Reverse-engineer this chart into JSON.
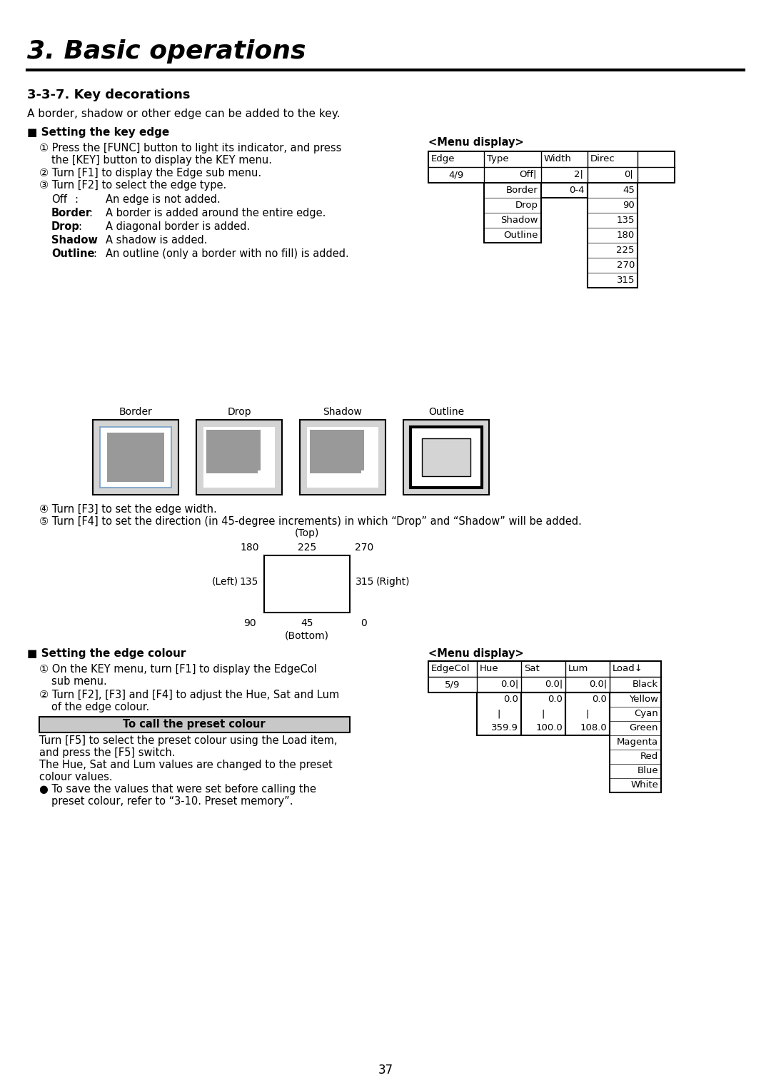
{
  "title": "3. Basic operations",
  "section_title": "3-3-7. Key decorations",
  "intro_text": "A border, shadow or other edge can be added to the key.",
  "setting_key_edge_title": "■ Setting the key edge",
  "menu_display_title1": "<Menu display>",
  "table1_header": [
    "Edge",
    "Type",
    "Width",
    "Direc",
    ""
  ],
  "table1_row1": [
    "4/9",
    "Off",
    "2",
    "0",
    ""
  ],
  "table1_dropdown_types": [
    "Border",
    "Drop",
    "Shadow",
    "Outline"
  ],
  "table1_dropdown_width": "0-4",
  "table1_dropdown_direc": [
    "45",
    "90",
    "135",
    "180",
    "225",
    "270",
    "315"
  ],
  "edge_images_labels": [
    "Border",
    "Drop",
    "Shadow",
    "Outline"
  ],
  "setting_edge_colour_title": "■ Setting the edge colour",
  "menu_display_title2": "<Menu display>",
  "table2_header": [
    "EdgeCol",
    "Hue",
    "Sat",
    "Lum",
    "Load↓"
  ],
  "table2_row1": [
    "5/9",
    "0.0",
    "0.0",
    "0.0",
    "Black"
  ],
  "table2_dropdown_hue": [
    "0.0",
    "|",
    "359.9"
  ],
  "table2_dropdown_sat": [
    "0.0",
    "|",
    "100.0"
  ],
  "table2_dropdown_lum": [
    "0.0",
    "|",
    "108.0"
  ],
  "table2_dropdown_load": [
    "Yellow",
    "Cyan",
    "Green",
    "Magenta",
    "Red",
    "Blue",
    "White"
  ],
  "page_number": "37",
  "bg_color": "#ffffff",
  "light_gray": "#cccccc",
  "mid_gray": "#aaaaaa",
  "dark_gray": "#888888",
  "preset_box_color": "#c8c8c8"
}
